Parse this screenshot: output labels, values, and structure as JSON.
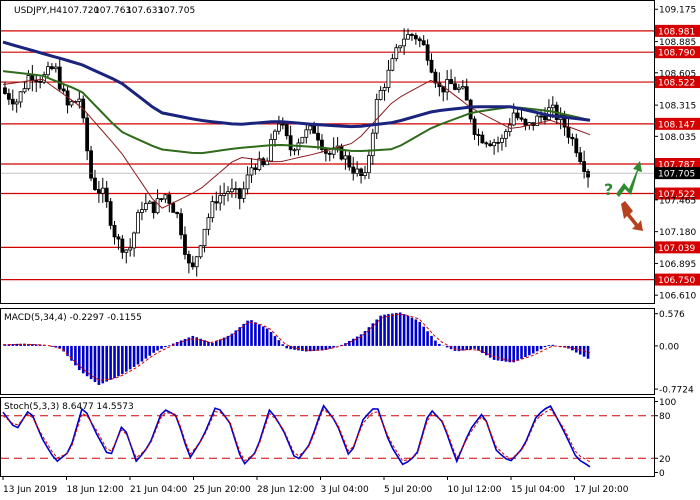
{
  "symbol_header": {
    "symbol": "USDJPY,H4",
    "ohlc": [
      "107.720",
      "107.763",
      "107.633",
      "107.705"
    ]
  },
  "price_axis": {
    "ticks": [
      "109.175",
      "108.885",
      "108.605",
      "108.315",
      "108.035",
      "107.465",
      "107.180",
      "106.895",
      "106.610"
    ],
    "ylim": [
      106.54,
      109.24
    ]
  },
  "levels": [
    {
      "value": 108.981,
      "label": "108.981"
    },
    {
      "value": 108.79,
      "label": "108.790"
    },
    {
      "value": 108.522,
      "label": "108.522"
    },
    {
      "value": 108.147,
      "label": "108.147"
    },
    {
      "value": 107.787,
      "label": "107.787"
    },
    {
      "value": 107.522,
      "label": "107.522"
    },
    {
      "value": 107.039,
      "label": "107.039"
    },
    {
      "value": 106.75,
      "label": "106.750"
    }
  ],
  "current_price": {
    "value": 107.705,
    "label": "107.705"
  },
  "scenario_marker": {
    "text": "?",
    "up_color": "#2e8b2e",
    "down_color": "#b5411e"
  },
  "x_axis": {
    "labels": [
      "13 Jun 2019",
      "18 Jun 12:00",
      "21 Jun 04:00",
      "25 Jun 20:00",
      "28 Jun 12:00",
      "3 Jul 04:00",
      "5 Jul 20:00",
      "10 Jul 12:00",
      "15 Jul 04:00",
      "17 Jul 20:00"
    ]
  },
  "macd": {
    "title": "MACD(5,34,4) -0.2297 -0.1155",
    "ticks": [
      "0.576",
      "0.00",
      "-0.7724"
    ],
    "ylim": [
      -0.86,
      0.66
    ]
  },
  "stoch": {
    "title": "Stoch(5,3,3) 8.6477 14.5573",
    "ticks": [
      "100",
      "80",
      "20",
      "0"
    ],
    "ylim": [
      -5,
      105
    ]
  },
  "colors": {
    "bull": "#ffffff",
    "bear": "#000000",
    "level_line": "#d40000",
    "ma_slow": "#1a237e",
    "ma_mid": "#2e6b1a",
    "ma_fast": "#8b1a1a",
    "macd_hist": "#0000cc",
    "macd_signal": "#d40000",
    "stoch_main": "#0000cc",
    "stoch_signal": "#d40000"
  },
  "chart_data": {
    "type": "candlestick",
    "close_anchors": [
      108.42,
      108.35,
      108.6,
      108.55,
      108.66,
      108.3,
      108.38,
      107.62,
      107.5,
      107.1,
      107.0,
      107.42,
      107.4,
      107.52,
      107.3,
      106.78,
      107.2,
      107.48,
      107.55,
      107.48,
      107.8,
      107.75,
      108.2,
      107.92,
      108.05,
      108.1,
      107.87,
      107.9,
      107.75,
      107.64,
      108.36,
      108.62,
      108.92,
      108.95,
      108.8,
      108.46,
      108.5,
      108.42,
      108.05,
      108.0,
      107.98,
      108.25,
      108.1,
      108.2,
      108.28,
      108.15,
      107.95,
      107.7
    ],
    "ma_slow_anchors": [
      108.88,
      108.78,
      108.68,
      108.52,
      108.25,
      108.18,
      108.14,
      108.17,
      108.14,
      108.12,
      108.16,
      108.26,
      108.3,
      108.3,
      108.22,
      108.18
    ],
    "ma_mid_anchors": [
      108.62,
      108.58,
      108.44,
      108.08,
      107.92,
      107.88,
      107.93,
      107.96,
      107.94,
      107.9,
      107.92,
      108.12,
      108.25,
      108.3,
      108.26,
      108.18
    ],
    "ma_fast_anchors": [
      108.5,
      108.55,
      108.3,
      107.9,
      107.38,
      107.55,
      107.85,
      107.8,
      107.88,
      107.98,
      108.36,
      108.55,
      108.28,
      108.1,
      108.18,
      108.05
    ],
    "macd_hist_anchors": [
      0.03,
      0.04,
      0.02,
      -0.05,
      -0.45,
      -0.7,
      -0.55,
      -0.35,
      -0.1,
      0.05,
      0.18,
      0.05,
      0.2,
      0.48,
      0.3,
      -0.05,
      -0.1,
      -0.08,
      0.03,
      0.22,
      0.55,
      0.6,
      0.45,
      0.05,
      -0.1,
      -0.05,
      -0.25,
      -0.3,
      -0.15,
      0.03,
      -0.05,
      -0.23
    ],
    "macd_signal_anchors": [
      0.02,
      0.03,
      0.02,
      -0.02,
      -0.35,
      -0.62,
      -0.58,
      -0.4,
      -0.15,
      0.02,
      0.14,
      0.06,
      0.16,
      0.44,
      0.34,
      0.0,
      -0.08,
      -0.07,
      0.01,
      0.18,
      0.5,
      0.58,
      0.48,
      0.1,
      -0.08,
      -0.06,
      -0.2,
      -0.28,
      -0.17,
      0.0,
      -0.03,
      -0.12
    ],
    "stoch_main_anchors": [
      85,
      60,
      90,
      45,
      15,
      30,
      95,
      55,
      20,
      70,
      15,
      40,
      90,
      80,
      20,
      50,
      95,
      70,
      10,
      30,
      90,
      60,
      15,
      40,
      95,
      70,
      20,
      75,
      95,
      40,
      10,
      25,
      90,
      70,
      15,
      60,
      85,
      30,
      15,
      35,
      80,
      95,
      60,
      20,
      8
    ],
    "stoch_signal_anchors": [
      80,
      65,
      85,
      50,
      20,
      28,
      88,
      60,
      25,
      65,
      20,
      38,
      85,
      82,
      25,
      48,
      90,
      72,
      15,
      28,
      85,
      62,
      20,
      38,
      90,
      72,
      25,
      70,
      90,
      45,
      15,
      23,
      85,
      72,
      20,
      55,
      82,
      35,
      18,
      33,
      76,
      90,
      64,
      26,
      15
    ]
  }
}
